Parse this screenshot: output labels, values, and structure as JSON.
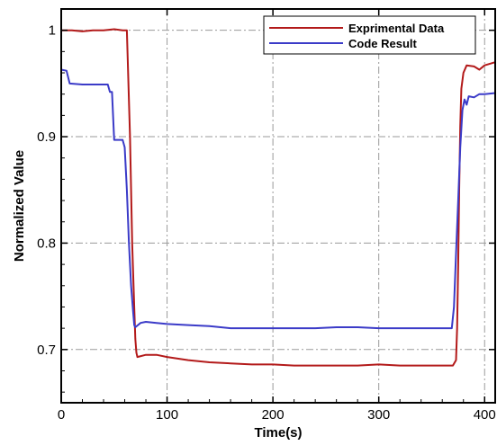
{
  "chart_data": {
    "type": "line",
    "title": "",
    "xlabel": "Time(s)",
    "ylabel": "Normalized Value",
    "xlim": [
      0,
      410
    ],
    "ylim": [
      0.65,
      1.02
    ],
    "x_ticks": [
      0,
      100,
      200,
      300,
      400
    ],
    "x_tick_labels": [
      "0",
      "100",
      "200",
      "300",
      "400"
    ],
    "y_ticks": [
      0.7,
      0.8,
      0.9,
      1.0
    ],
    "y_tick_labels": [
      "0.7",
      "0.8",
      "0.9",
      "1"
    ],
    "grid": true,
    "grid_style": "dash-dot",
    "legend_position": "top-right",
    "series": [
      {
        "name": "Exprimental Data",
        "color": "#b31a1a",
        "points": [
          [
            0,
            1.0
          ],
          [
            10,
            1.0
          ],
          [
            20,
            0.999
          ],
          [
            30,
            1.0
          ],
          [
            40,
            1.0
          ],
          [
            50,
            1.001
          ],
          [
            58,
            1.0
          ],
          [
            62,
            1.0
          ],
          [
            65,
            0.9
          ],
          [
            67,
            0.8
          ],
          [
            69,
            0.74
          ],
          [
            70,
            0.71
          ],
          [
            71,
            0.697
          ],
          [
            72,
            0.693
          ],
          [
            80,
            0.695
          ],
          [
            90,
            0.695
          ],
          [
            100,
            0.693
          ],
          [
            120,
            0.69
          ],
          [
            140,
            0.688
          ],
          [
            160,
            0.687
          ],
          [
            180,
            0.686
          ],
          [
            200,
            0.686
          ],
          [
            220,
            0.685
          ],
          [
            240,
            0.685
          ],
          [
            260,
            0.685
          ],
          [
            280,
            0.685
          ],
          [
            300,
            0.686
          ],
          [
            320,
            0.685
          ],
          [
            340,
            0.685
          ],
          [
            360,
            0.685
          ],
          [
            370,
            0.685
          ],
          [
            373,
            0.69
          ],
          [
            374,
            0.72
          ],
          [
            375,
            0.78
          ],
          [
            376,
            0.85
          ],
          [
            377,
            0.91
          ],
          [
            378,
            0.945
          ],
          [
            380,
            0.96
          ],
          [
            383,
            0.967
          ],
          [
            390,
            0.966
          ],
          [
            395,
            0.963
          ],
          [
            400,
            0.967
          ],
          [
            410,
            0.97
          ]
        ]
      },
      {
        "name": "Code Result",
        "color": "#3b3bc8",
        "points": [
          [
            0,
            0.963
          ],
          [
            5,
            0.962
          ],
          [
            8,
            0.95
          ],
          [
            20,
            0.949
          ],
          [
            30,
            0.949
          ],
          [
            44,
            0.949
          ],
          [
            46,
            0.942
          ],
          [
            48,
            0.942
          ],
          [
            50,
            0.897
          ],
          [
            58,
            0.897
          ],
          [
            60,
            0.89
          ],
          [
            62,
            0.85
          ],
          [
            64,
            0.8
          ],
          [
            66,
            0.76
          ],
          [
            68,
            0.735
          ],
          [
            69,
            0.723
          ],
          [
            70,
            0.721
          ],
          [
            75,
            0.725
          ],
          [
            80,
            0.726
          ],
          [
            90,
            0.725
          ],
          [
            100,
            0.724
          ],
          [
            120,
            0.723
          ],
          [
            140,
            0.722
          ],
          [
            160,
            0.72
          ],
          [
            180,
            0.72
          ],
          [
            200,
            0.72
          ],
          [
            220,
            0.72
          ],
          [
            240,
            0.72
          ],
          [
            260,
            0.721
          ],
          [
            280,
            0.721
          ],
          [
            300,
            0.72
          ],
          [
            320,
            0.72
          ],
          [
            340,
            0.72
          ],
          [
            360,
            0.72
          ],
          [
            369,
            0.72
          ],
          [
            371,
            0.74
          ],
          [
            373,
            0.79
          ],
          [
            375,
            0.84
          ],
          [
            377,
            0.89
          ],
          [
            379,
            0.925
          ],
          [
            381,
            0.935
          ],
          [
            383,
            0.93
          ],
          [
            385,
            0.938
          ],
          [
            390,
            0.937
          ],
          [
            395,
            0.94
          ],
          [
            400,
            0.94
          ],
          [
            410,
            0.941
          ]
        ]
      }
    ]
  }
}
